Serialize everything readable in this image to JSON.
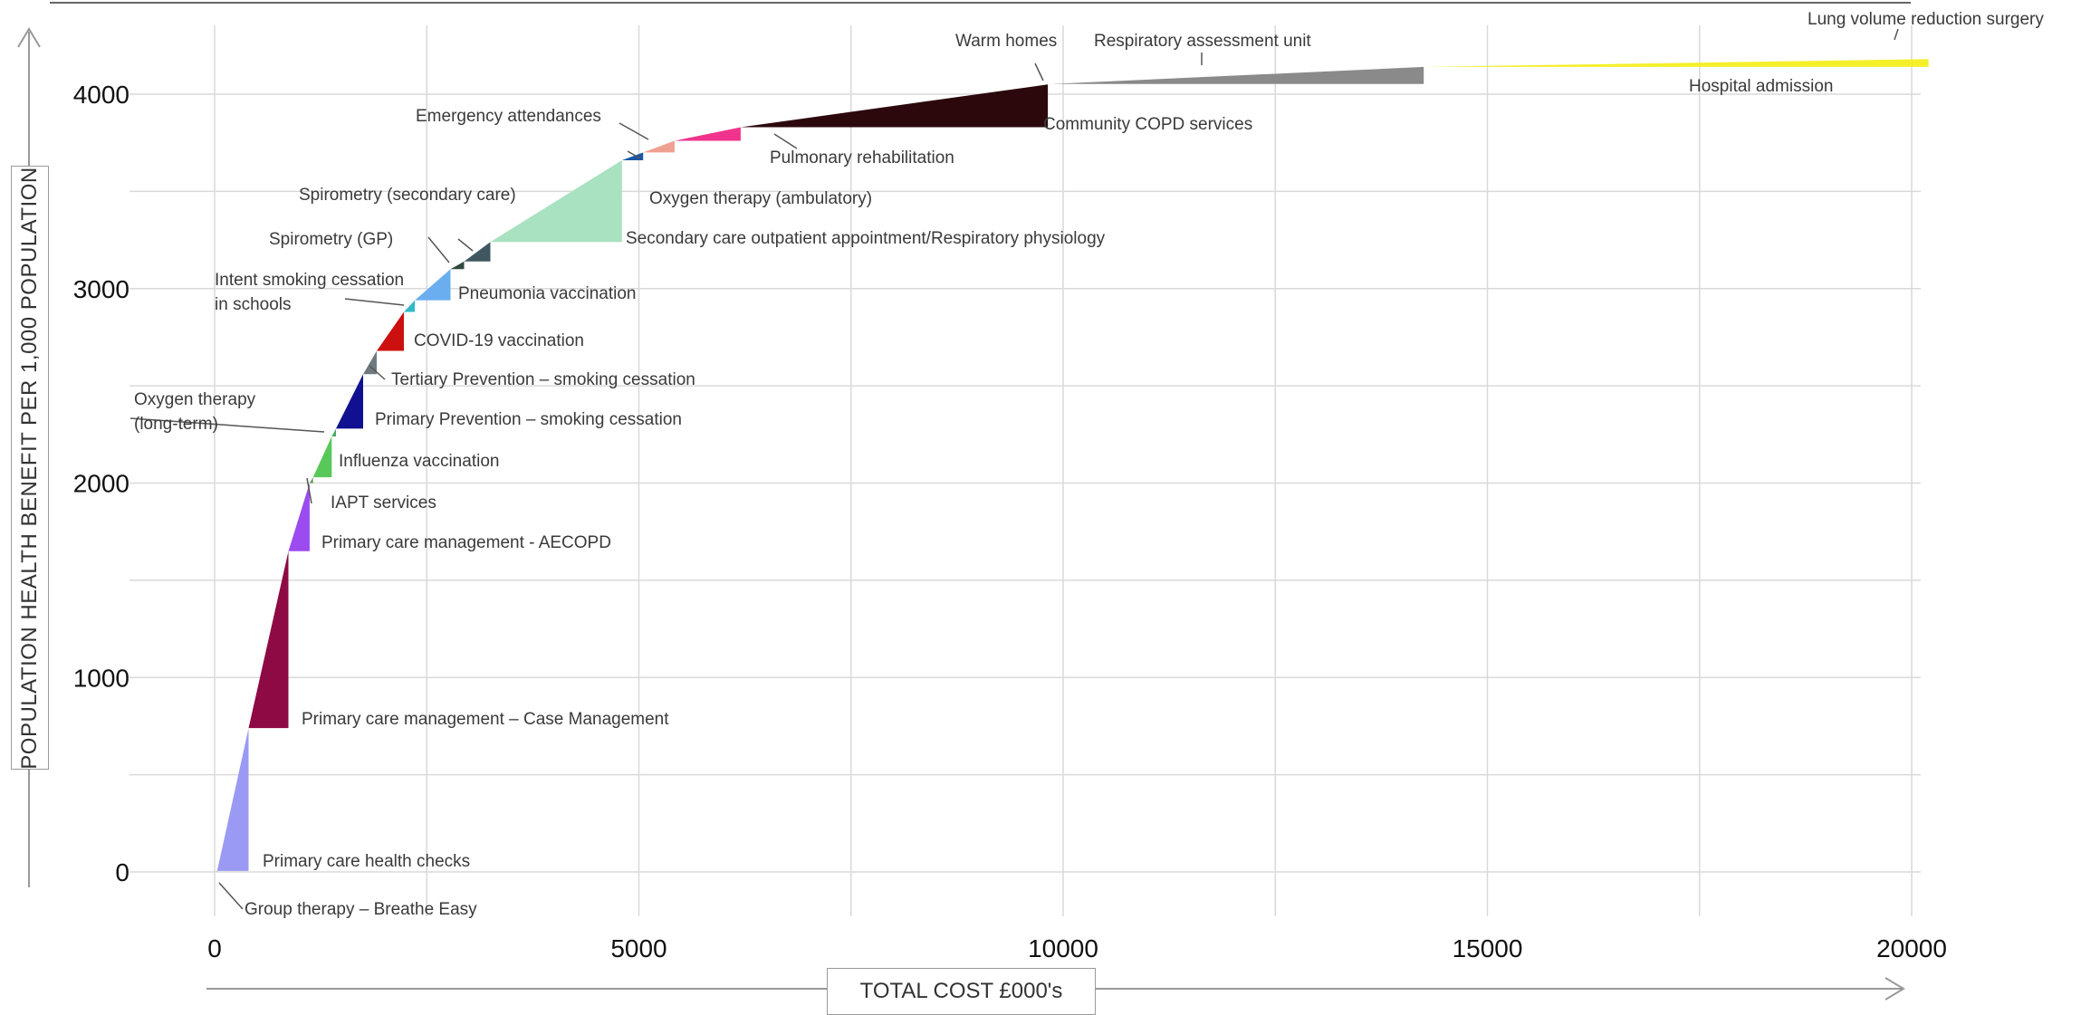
{
  "chart_data": {
    "type": "area",
    "title": "",
    "xlabel": "TOTAL COST £000's",
    "ylabel": "POPULATION HEALTH BENEFIT PER 1,000 POPULATION",
    "xlim": [
      0,
      20400
    ],
    "ylim": [
      -150,
      4400
    ],
    "x_ticks": [
      0,
      5000,
      10000,
      15000,
      20000
    ],
    "y_ticks": [
      0,
      1000,
      2000,
      3000,
      4000
    ],
    "grid": true,
    "series": [
      {
        "label": "Group therapy – Breathe Easy",
        "x0": 0,
        "x1": 30,
        "y0": 0,
        "y1": 5,
        "color": "#bfbfbf"
      },
      {
        "label": "Primary care health checks",
        "x0": 30,
        "x1": 400,
        "y0": 5,
        "y1": 740,
        "color": "#9a9af5"
      },
      {
        "label": "Primary care management – Case Management",
        "x0": 400,
        "x1": 870,
        "y0": 740,
        "y1": 1650,
        "color": "#8e0a44"
      },
      {
        "label": "Primary care management - AECOPD",
        "x0": 870,
        "x1": 1120,
        "y0": 1650,
        "y1": 2000,
        "color": "#9b4bf0"
      },
      {
        "label": "IAPT services",
        "x0": 1120,
        "x1": 1160,
        "y0": 2000,
        "y1": 2030,
        "color": "#5f9a5f"
      },
      {
        "label": "Influenza vaccination",
        "x0": 1160,
        "x1": 1380,
        "y0": 2030,
        "y1": 2240,
        "color": "#59c85a"
      },
      {
        "label": "Oxygen therapy (long-term)",
        "x0": 1380,
        "x1": 1430,
        "y0": 2240,
        "y1": 2280,
        "color": "#4aaa66"
      },
      {
        "label": "Primary Prevention – smoking cessation",
        "x0": 1430,
        "x1": 1750,
        "y0": 2280,
        "y1": 2560,
        "color": "#101090"
      },
      {
        "label": "Tertiary Prevention – smoking cessation",
        "x0": 1750,
        "x1": 1910,
        "y0": 2560,
        "y1": 2680,
        "color": "#6e7a80"
      },
      {
        "label": "COVID-19 vaccination",
        "x0": 1910,
        "x1": 2230,
        "y0": 2680,
        "y1": 2880,
        "color": "#cc1010"
      },
      {
        "label": "Intent smoking cessation in schools",
        "x0": 2230,
        "x1": 2360,
        "y0": 2880,
        "y1": 2940,
        "color": "#30b8c8"
      },
      {
        "label": "Pneumonia vaccination",
        "x0": 2360,
        "x1": 2780,
        "y0": 2940,
        "y1": 3100,
        "color": "#6aaef0"
      },
      {
        "label": "Spirometry (GP)",
        "x0": 2780,
        "x1": 2940,
        "y0": 3100,
        "y1": 3140,
        "color": "#2f4b40"
      },
      {
        "label": "Spirometry (secondary care)",
        "x0": 2940,
        "x1": 3250,
        "y0": 3140,
        "y1": 3240,
        "color": "#3f5860"
      },
      {
        "label": "Secondary care outpatient appointment/Respiratory physiology",
        "x0": 3250,
        "x1": 4800,
        "y0": 3240,
        "y1": 3660,
        "color": "#a8e2c0"
      },
      {
        "label": "Oxygen therapy (ambulatory)",
        "x0": 4800,
        "x1": 5050,
        "y0": 3660,
        "y1": 3700,
        "color": "#1a56a8"
      },
      {
        "label": "Emergency attendances",
        "x0": 5050,
        "x1": 5420,
        "y0": 3700,
        "y1": 3760,
        "color": "#f0a090"
      },
      {
        "label": "Pulmonary rehabilitation",
        "x0": 5420,
        "x1": 6200,
        "y0": 3760,
        "y1": 3830,
        "color": "#f0338c"
      },
      {
        "label": "Community COPD services",
        "x0": 6200,
        "x1": 9820,
        "y0": 3830,
        "y1": 4050,
        "color": "#2c080c"
      },
      {
        "label": "Warm homes",
        "x0": 9820,
        "x1": 9860,
        "y0": 4050,
        "y1": 4052,
        "color": "#d0d0d0"
      },
      {
        "label": "Respiratory assessment unit",
        "x0": 9860,
        "x1": 14250,
        "y0": 4052,
        "y1": 4140,
        "color": "#8a8a8a"
      },
      {
        "label": "Hospital admission",
        "x0": 14250,
        "x1": 20200,
        "y0": 4140,
        "y1": 4180,
        "color": "#f5ef2a"
      },
      {
        "label": "Lung volume reduction surgery",
        "x0": 20200,
        "x1": 20220,
        "y0": 4180,
        "y1": 4182,
        "color": "#c8e0ea"
      }
    ]
  },
  "labels": {
    "group_therapy": "Group therapy – Breathe Easy",
    "health_checks": "Primary care health checks",
    "case_management": "Primary care management – Case Management",
    "aecopd": "Primary care management - AECOPD",
    "iapt": "IAPT services",
    "influenza": "Influenza vaccination",
    "oxygen_lt_1": "Oxygen therapy",
    "oxygen_lt_2": "(long-term)",
    "primary_prev": "Primary Prevention – smoking cessation",
    "tertiary_prev": "Tertiary Prevention – smoking cessation",
    "covid": "COVID-19 vaccination",
    "intent_1": "Intent smoking cessation",
    "intent_2": "in schools",
    "pneumonia": "Pneumonia vaccination",
    "spiro_gp": "Spirometry (GP)",
    "spiro_sc": "Spirometry (secondary care)",
    "secondary_care": "Secondary care outpatient appointment/Respiratory physiology",
    "oxygen_amb": "Oxygen therapy (ambulatory)",
    "emergency": "Emergency attendances",
    "pulm_rehab": "Pulmonary rehabilitation",
    "community": "Community COPD services",
    "warm_homes": "Warm homes",
    "rau": "Respiratory assessment unit",
    "hospital": "Hospital admission",
    "lvrs": "Lung volume reduction surgery"
  }
}
